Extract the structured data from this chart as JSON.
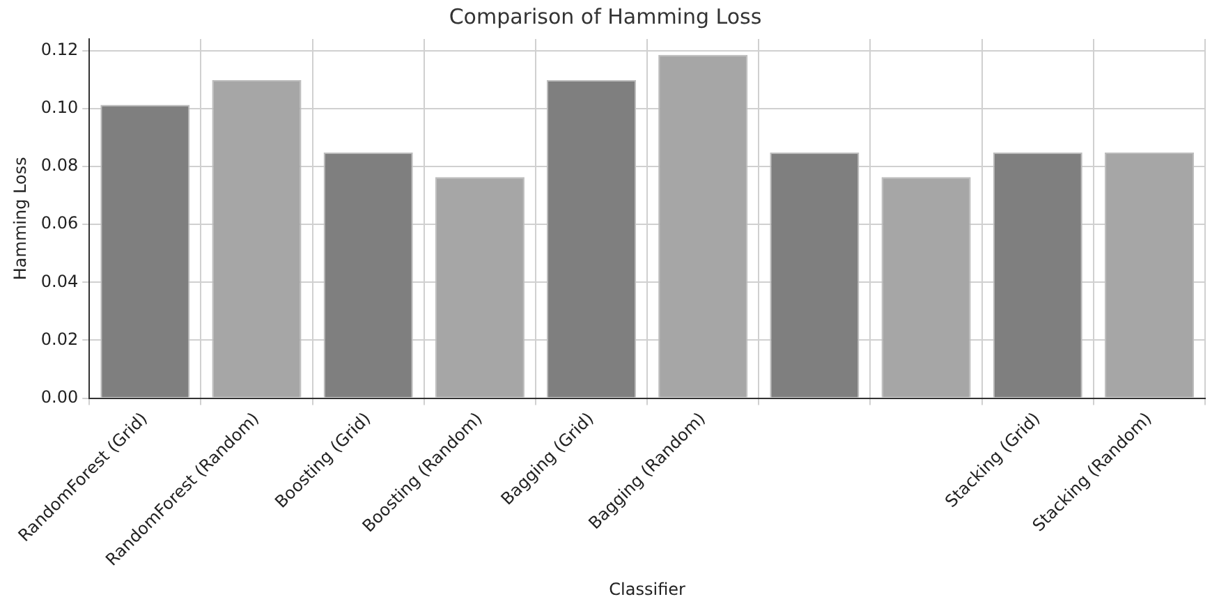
{
  "chart_data": {
    "type": "bar",
    "title": "Comparison of Hamming Loss",
    "xlabel": "Classifier",
    "ylabel": "Hamming Loss",
    "categories": [
      "RandomForest (Grid)",
      "RandomForest (Random)",
      "Boosting (Grid)",
      "Boosting (Random)",
      "Bagging (Grid)",
      "Bagging (Random)",
      null,
      null,
      "Stacking (Grid)",
      "Stacking (Random)"
    ],
    "values": [
      0.1013,
      0.1098,
      0.0848,
      0.0763,
      0.1098,
      0.1185,
      0.0848,
      0.0763,
      0.0848,
      0.0848
    ],
    "colors": [
      "#7f7f7f",
      "#a6a6a6",
      "#7f7f7f",
      "#a6a6a6",
      "#7f7f7f",
      "#a6a6a6",
      "#7f7f7f",
      "#a6a6a6",
      "#7f7f7f",
      "#a6a6a6"
    ],
    "ylim": [
      0,
      0.124
    ],
    "yticks": [
      {
        "value": 0,
        "label": "0.00"
      },
      {
        "value": 0.02,
        "label": "0.02"
      },
      {
        "value": 0.04,
        "label": "0.04"
      },
      {
        "value": 0.06,
        "label": "0.06"
      },
      {
        "value": 0.08,
        "label": "0.08"
      },
      {
        "value": 0.1,
        "label": "0.10"
      },
      {
        "value": 0.12,
        "label": "0.12"
      }
    ],
    "grid": true,
    "legend": false
  }
}
